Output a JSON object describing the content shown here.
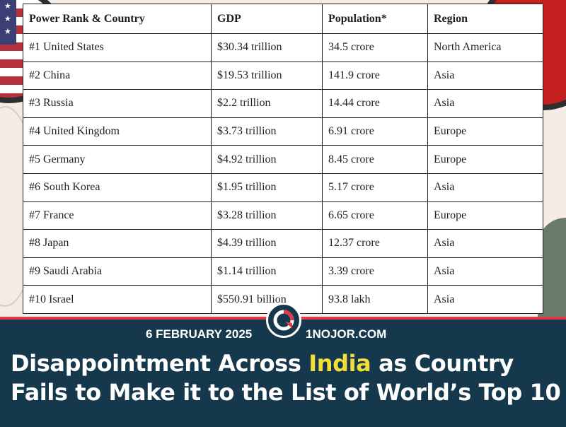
{
  "table": {
    "headers": [
      "Power Rank & Country",
      "GDP",
      "Population*",
      "Region"
    ],
    "rows": [
      [
        "#1 United States",
        "$30.34 trillion",
        "34.5 crore",
        "North America"
      ],
      [
        "#2 China",
        "$19.53 trillion",
        "141.9 crore",
        "Asia"
      ],
      [
        "#3 Russia",
        "$2.2 trillion",
        "14.44 crore",
        "Asia"
      ],
      [
        "#4 United Kingdom",
        "$3.73 trillion",
        "6.91 crore",
        "Europe"
      ],
      [
        "#5 Germany",
        "$4.92 trillion",
        "8.45 crore",
        "Europe"
      ],
      [
        "#6 South Korea",
        "$1.95 trillion",
        "5.17 crore",
        "Asia"
      ],
      [
        "#7 France",
        "$3.28 trillion",
        "6.65 crore",
        "Europe"
      ],
      [
        "#8 Japan",
        "$4.39 trillion",
        "12.37 crore",
        "Asia"
      ],
      [
        "#9 Saudi Arabia",
        "$1.14 trillion",
        "3.39 crore",
        "Asia"
      ],
      [
        "#10 Israel",
        "$550.91 billion",
        "93.8 lakh",
        "Asia"
      ]
    ]
  },
  "banner": {
    "date": "6 FEBRUARY 2025",
    "site": "1NOJOR.COM",
    "logo_icon": "circular-arrow-logo-icon",
    "headline_part1": "Disappointment Across ",
    "headline_highlight": "India",
    "headline_part2": " as Country Fails to Make it to the List of World’s Top 10"
  },
  "colors": {
    "banner_bg": "#16384c",
    "accent_red": "#e03a45",
    "highlight_yellow": "#f3dd3a"
  }
}
